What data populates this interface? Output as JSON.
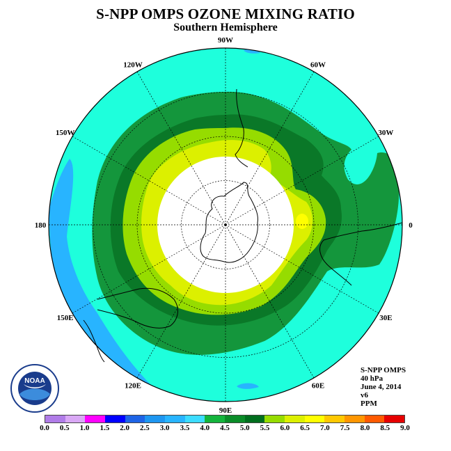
{
  "title": "S-NPP OMPS OZONE MIXING RATIO",
  "subtitle": "Southern Hemisphere",
  "longitude_labels": [
    {
      "text": "0",
      "lon": 0
    },
    {
      "text": "30E",
      "lon": 30
    },
    {
      "text": "60E",
      "lon": 60
    },
    {
      "text": "90E",
      "lon": 90
    },
    {
      "text": "120E",
      "lon": 120
    },
    {
      "text": "150E",
      "lon": 150
    },
    {
      "text": "180",
      "lon": 180
    },
    {
      "text": "150W",
      "lon": -150
    },
    {
      "text": "120W",
      "lon": -120
    },
    {
      "text": "90W",
      "lon": -90
    },
    {
      "text": "60W",
      "lon": -60
    },
    {
      "text": "30W",
      "lon": -30
    }
  ],
  "info": {
    "instrument": "S-NPP OMPS",
    "level": "40 hPa",
    "date": "June 4, 2014",
    "version": "v6",
    "units": "PPM"
  },
  "logo": {
    "text": "NOAA",
    "ring_text": "NATIONAL OCEANIC AND ATMOSPHERIC ADMINISTRATION · U.S. DEPARTMENT OF COMMERCE"
  },
  "colorbar": {
    "tick_labels": [
      "0.0",
      "0.5",
      "1.0",
      "1.5",
      "2.0",
      "2.5",
      "3.0",
      "3.5",
      "4.0",
      "4.5",
      "5.0",
      "5.5",
      "6.0",
      "6.5",
      "7.0",
      "7.5",
      "8.0",
      "8.5",
      "9.0"
    ],
    "colors": [
      "#b07ce8",
      "#d9a8f5",
      "#ff00ff",
      "#0000ff",
      "#1e64e6",
      "#1e96f0",
      "#28b4ff",
      "#3cdcff",
      "#14b43c",
      "#0a8c28",
      "#006e1e",
      "#96dc00",
      "#dcf000",
      "#ffff00",
      "#ffc800",
      "#ff9600",
      "#ff5a00",
      "#e60000",
      "#8b5a3c"
    ]
  },
  "map": {
    "projection": "south polar stereographic",
    "ocean_color": "#1effdc",
    "contour_bands": [
      {
        "level": "3.0-3.5",
        "color": "#28b4ff"
      },
      {
        "level": "3.5-4.0",
        "color": "#1effdc"
      },
      {
        "level": "4.0-4.5",
        "color": "#14963c"
      },
      {
        "level": "4.5-5.0",
        "color": "#0a7828"
      },
      {
        "level": "5.0-5.5",
        "color": "#96dc00"
      },
      {
        "level": "5.5-6.0",
        "color": "#dcf000"
      },
      {
        "level": "6.0-6.5",
        "color": "#ffff00"
      }
    ],
    "polar_night_fill": "#ffffff"
  }
}
